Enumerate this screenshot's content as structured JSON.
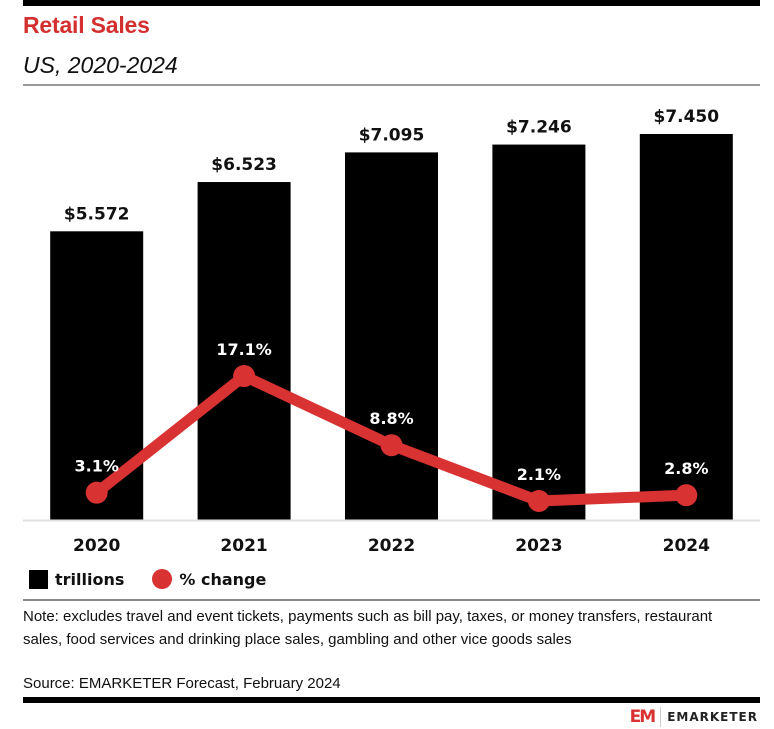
{
  "header": {
    "title": "Retail Sales",
    "subtitle": "US, 2020-2024"
  },
  "chart_data": {
    "type": "bar",
    "title": "Retail Sales",
    "subtitle": "US, 2020-2024",
    "categories": [
      "2020",
      "2021",
      "2022",
      "2023",
      "2024"
    ],
    "series": [
      {
        "name": "trillions",
        "type": "bar",
        "values": [
          5.572,
          6.523,
          7.095,
          7.246,
          7.45
        ],
        "labels": [
          "$5.572",
          "$6.523",
          "$7.095",
          "$7.246",
          "$7.450"
        ],
        "color": "#000000"
      },
      {
        "name": "% change",
        "type": "line",
        "values": [
          3.1,
          17.1,
          8.8,
          2.1,
          2.8
        ],
        "labels": [
          "3.1%",
          "17.1%",
          "8.8%",
          "2.1%",
          "2.8%"
        ],
        "color": "#d93232"
      }
    ],
    "xlabel": "",
    "ylabel": "",
    "grid": false,
    "legend_position": "bottom-left"
  },
  "legend": {
    "bar_label": "trillions",
    "line_label": "% change"
  },
  "footer": {
    "note": "Note: excludes travel and event tickets, payments such as bill pay, taxes, or money transfers, restaurant sales, food services and drinking place sales, gambling and other vice goods sales",
    "source": "Source: EMARKETER Forecast, February 2024",
    "logo_mark": "EM",
    "logo_text": "EMARKETER"
  },
  "colors": {
    "accent": "#d32f2f",
    "line": "#d93232",
    "bar": "#000000"
  }
}
